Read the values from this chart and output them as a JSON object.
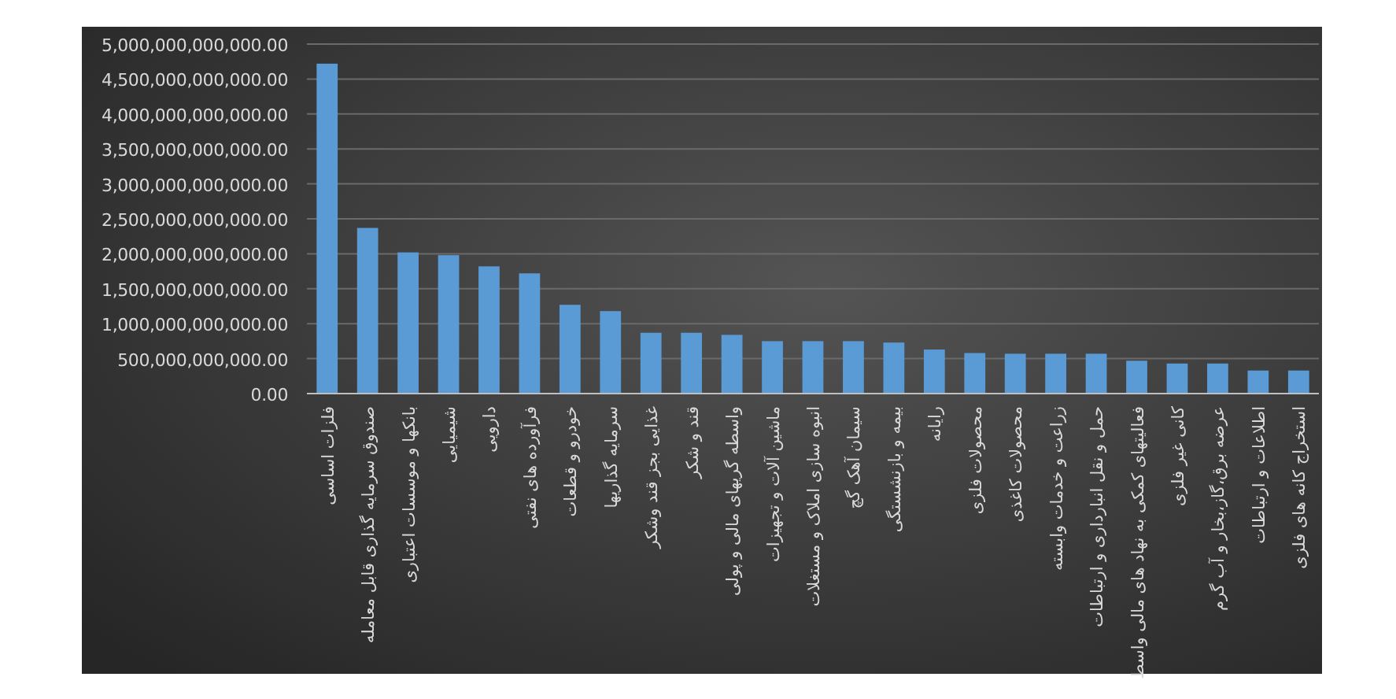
{
  "chart_data": {
    "type": "bar",
    "categories": [
      "فلزات اساسی",
      "صندوق سرمایه گذاری قابل معامله",
      "بانکها و موسسات اعتباری",
      "شیمیایی",
      "دارویی",
      "فرآورده های نفتی",
      "خودرو و قطعات",
      "سرمایه گذاریها",
      "غذایی بجز قند وشکر",
      "قند و شکر",
      "واسطه گریهای مالی و پولی",
      "ماشین آلات و تجهیزات",
      "انبوه سازی املاک و مستغلات",
      "سیمان آهک گچ",
      "بیمه و بازنشستگی",
      "رایانه",
      "محصولات فلزی",
      "محصولات کاغذی",
      "زراعت و خدمات وابسته",
      "حمل و نقل انبارداری و ارتباطات",
      "فعالیتهای کمکی به نهاد های مالی واسط",
      "کانی غیر فلزی",
      "عرضه برق،گاز،بخار و آب گرم",
      "اطلاعات و ارتباطات",
      "استخراج کانه های فلزی"
    ],
    "values": [
      4720000000000,
      2370000000000,
      2020000000000,
      1980000000000,
      1820000000000,
      1720000000000,
      1270000000000,
      1180000000000,
      870000000000,
      870000000000,
      840000000000,
      750000000000,
      750000000000,
      750000000000,
      730000000000,
      630000000000,
      580000000000,
      570000000000,
      570000000000,
      570000000000,
      470000000000,
      430000000000,
      430000000000,
      330000000000,
      330000000000
    ],
    "color": "#5b9bd5",
    "ylim": [
      0,
      5000000000000
    ],
    "yticks": [
      {
        "value": 0,
        "label": "0.00"
      },
      {
        "value": 500000000000,
        "label": "500,000,000,000.00"
      },
      {
        "value": 1000000000000,
        "label": "1,000,000,000,000.00"
      },
      {
        "value": 1500000000000,
        "label": "1,500,000,000,000.00"
      },
      {
        "value": 2000000000000,
        "label": "2,000,000,000,000.00"
      },
      {
        "value": 2500000000000,
        "label": "2,500,000,000,000.00"
      },
      {
        "value": 3000000000000,
        "label": "3,000,000,000,000.00"
      },
      {
        "value": 3500000000000,
        "label": "3,500,000,000,000.00"
      },
      {
        "value": 4000000000000,
        "label": "4,000,000,000,000.00"
      },
      {
        "value": 4500000000000,
        "label": "4,500,000,000,000.00"
      },
      {
        "value": 5000000000000,
        "label": "5,000,000,000,000.00"
      }
    ],
    "grid": "y"
  }
}
